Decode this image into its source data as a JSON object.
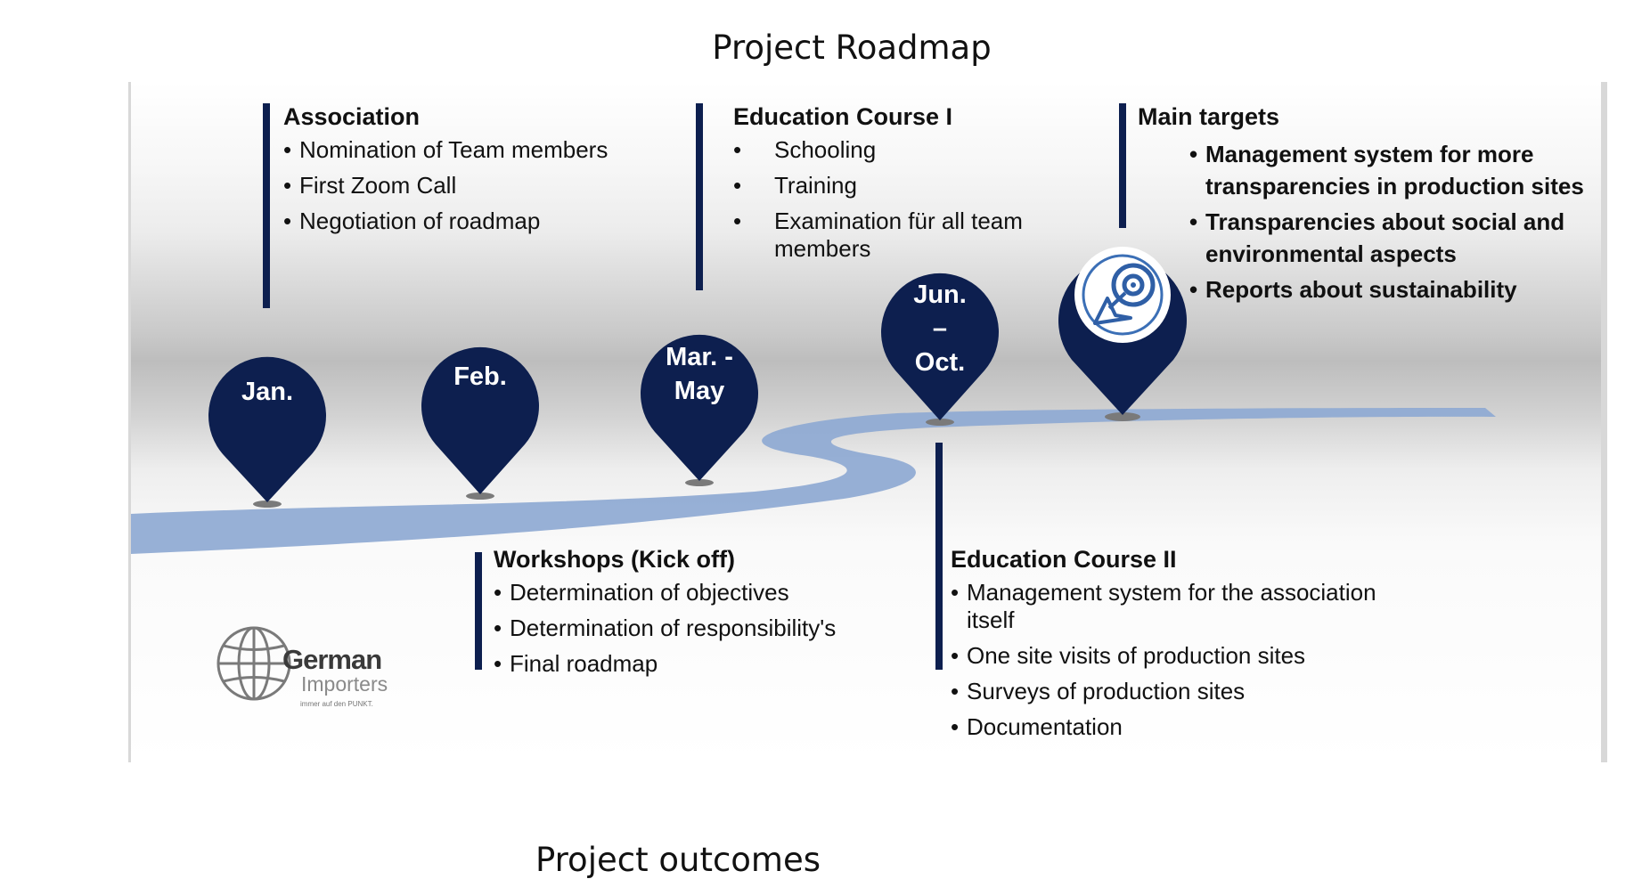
{
  "document": {
    "title": "Project Roadmap",
    "next_section_title": "Project outcomes"
  },
  "colors": {
    "pin_navy": "#0d1f4f",
    "road_blue": "#8ea9d2",
    "bar_navy": "#0d1f4f"
  },
  "pins": [
    {
      "label": "Jan."
    },
    {
      "label": "Feb."
    },
    {
      "label": "Mar. - May"
    },
    {
      "label": "Jun. – Oct."
    },
    {
      "label": "",
      "icon": "target-cursor-icon"
    }
  ],
  "milestones": {
    "association": {
      "heading": "Association",
      "items": [
        "Nomination of Team members",
        "First Zoom Call",
        "Negotiation of roadmap"
      ]
    },
    "education_course_1": {
      "heading": "Education Course I",
      "items": [
        "Schooling",
        "Training",
        "Examination für all team members"
      ]
    },
    "main_targets": {
      "heading": "Main targets",
      "items": [
        "Management system for more transparencies in production sites",
        "Transparencies about social and environmental aspects",
        "Reports about sustainability"
      ]
    },
    "workshops": {
      "heading": "Workshops (Kick off)",
      "items": [
        "Determination of objectives",
        "Determination of responsibility's",
        "Final roadmap"
      ]
    },
    "education_course_2": {
      "heading": "Education Course II",
      "items": [
        "Management system for the association itself",
        "One site visits of production sites",
        "Surveys of production sites",
        "Documentation"
      ]
    }
  },
  "logo": {
    "name": "German",
    "subtitle": "Importers",
    "tagline": "immer auf den PUNKT."
  }
}
